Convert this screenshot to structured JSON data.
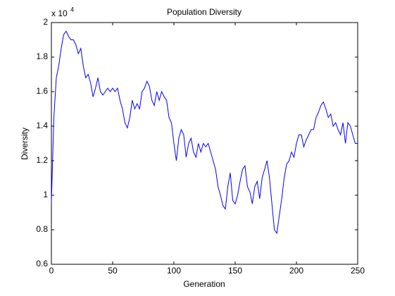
{
  "chart_data": {
    "type": "line",
    "title": "Population Diversity",
    "xlabel": "Generation",
    "ylabel": "Diversity",
    "multiplier": {
      "base": "x 10",
      "exponent": "4"
    },
    "x": [
      0,
      2,
      4,
      6,
      8,
      10,
      12,
      14,
      16,
      18,
      20,
      22,
      24,
      26,
      28,
      30,
      32,
      34,
      36,
      38,
      40,
      42,
      44,
      46,
      48,
      50,
      52,
      54,
      56,
      58,
      60,
      62,
      64,
      66,
      68,
      70,
      72,
      74,
      76,
      78,
      80,
      82,
      84,
      86,
      88,
      90,
      92,
      94,
      96,
      98,
      100,
      102,
      104,
      106,
      108,
      110,
      112,
      114,
      116,
      118,
      120,
      122,
      124,
      126,
      128,
      130,
      132,
      134,
      136,
      138,
      140,
      142,
      144,
      146,
      148,
      150,
      152,
      154,
      156,
      158,
      160,
      162,
      164,
      166,
      168,
      170,
      172,
      174,
      176,
      178,
      180,
      182,
      184,
      186,
      188,
      190,
      192,
      194,
      196,
      198,
      200,
      202,
      204,
      206,
      208,
      210,
      212,
      214,
      216,
      218,
      220,
      222,
      224,
      226,
      228,
      230,
      232,
      234,
      236,
      238,
      240,
      242,
      244,
      246,
      248,
      250
    ],
    "series": [
      {
        "name": "Diversity",
        "color": "#0000ff",
        "values": [
          0.96,
          1.45,
          1.68,
          1.75,
          1.85,
          1.93,
          1.95,
          1.92,
          1.9,
          1.9,
          1.87,
          1.82,
          1.85,
          1.75,
          1.68,
          1.7,
          1.65,
          1.57,
          1.62,
          1.68,
          1.6,
          1.58,
          1.6,
          1.62,
          1.6,
          1.62,
          1.6,
          1.62,
          1.55,
          1.5,
          1.42,
          1.39,
          1.45,
          1.55,
          1.5,
          1.53,
          1.5,
          1.6,
          1.62,
          1.66,
          1.63,
          1.55,
          1.52,
          1.6,
          1.55,
          1.6,
          1.57,
          1.55,
          1.45,
          1.42,
          1.3,
          1.2,
          1.33,
          1.38,
          1.35,
          1.22,
          1.3,
          1.33,
          1.25,
          1.22,
          1.3,
          1.25,
          1.3,
          1.28,
          1.3,
          1.25,
          1.2,
          1.15,
          1.05,
          1.0,
          0.94,
          0.92,
          1.05,
          1.13,
          0.97,
          0.95,
          1.0,
          1.08,
          1.15,
          1.17,
          1.05,
          1.02,
          0.95,
          1.05,
          1.08,
          0.98,
          1.1,
          1.15,
          1.2,
          1.1,
          0.95,
          0.8,
          0.78,
          0.88,
          0.98,
          1.1,
          1.18,
          1.2,
          1.25,
          1.22,
          1.3,
          1.35,
          1.35,
          1.28,
          1.32,
          1.35,
          1.38,
          1.38,
          1.45,
          1.48,
          1.52,
          1.54,
          1.5,
          1.45,
          1.47,
          1.4,
          1.42,
          1.38,
          1.35,
          1.42,
          1.3,
          1.42,
          1.4,
          1.35,
          1.3,
          1.3
        ]
      }
    ],
    "xlim": [
      0,
      250
    ],
    "xticks": [
      0,
      50,
      100,
      150,
      200,
      250
    ],
    "ylim": [
      0.6,
      2
    ],
    "yticks": [
      0.6,
      0.8,
      1,
      1.2,
      1.4,
      1.6,
      1.8,
      2
    ],
    "grid": false
  }
}
